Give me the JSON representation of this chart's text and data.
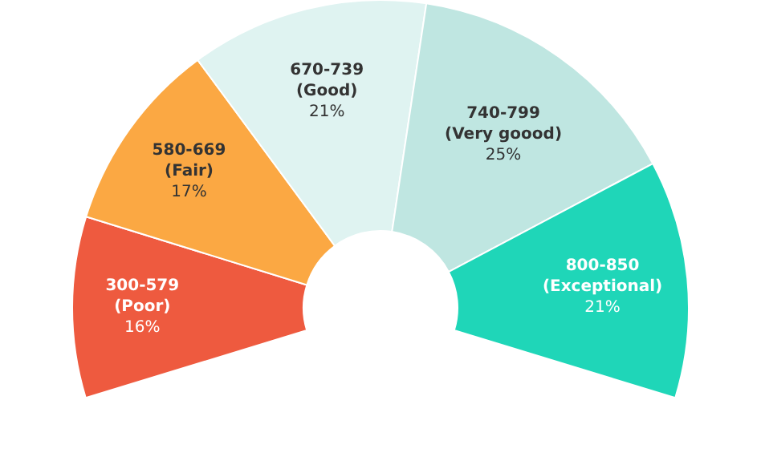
{
  "chart_data": {
    "type": "donut",
    "categories": [
      "300-579 (Poor)",
      "580-669 (Fair)",
      "670-739 (Good)",
      "740-799 (Very goood)",
      "800-850 (Exceptional)"
    ],
    "values": [
      16,
      17,
      21,
      25,
      21
    ],
    "colors": [
      "#ee5a3f",
      "#fba843",
      "#dff3f1",
      "#bfe6e1",
      "#1fd6b8"
    ],
    "value_labels": [
      "16%",
      "17%",
      "21%",
      "25%",
      "21%"
    ]
  }
}
